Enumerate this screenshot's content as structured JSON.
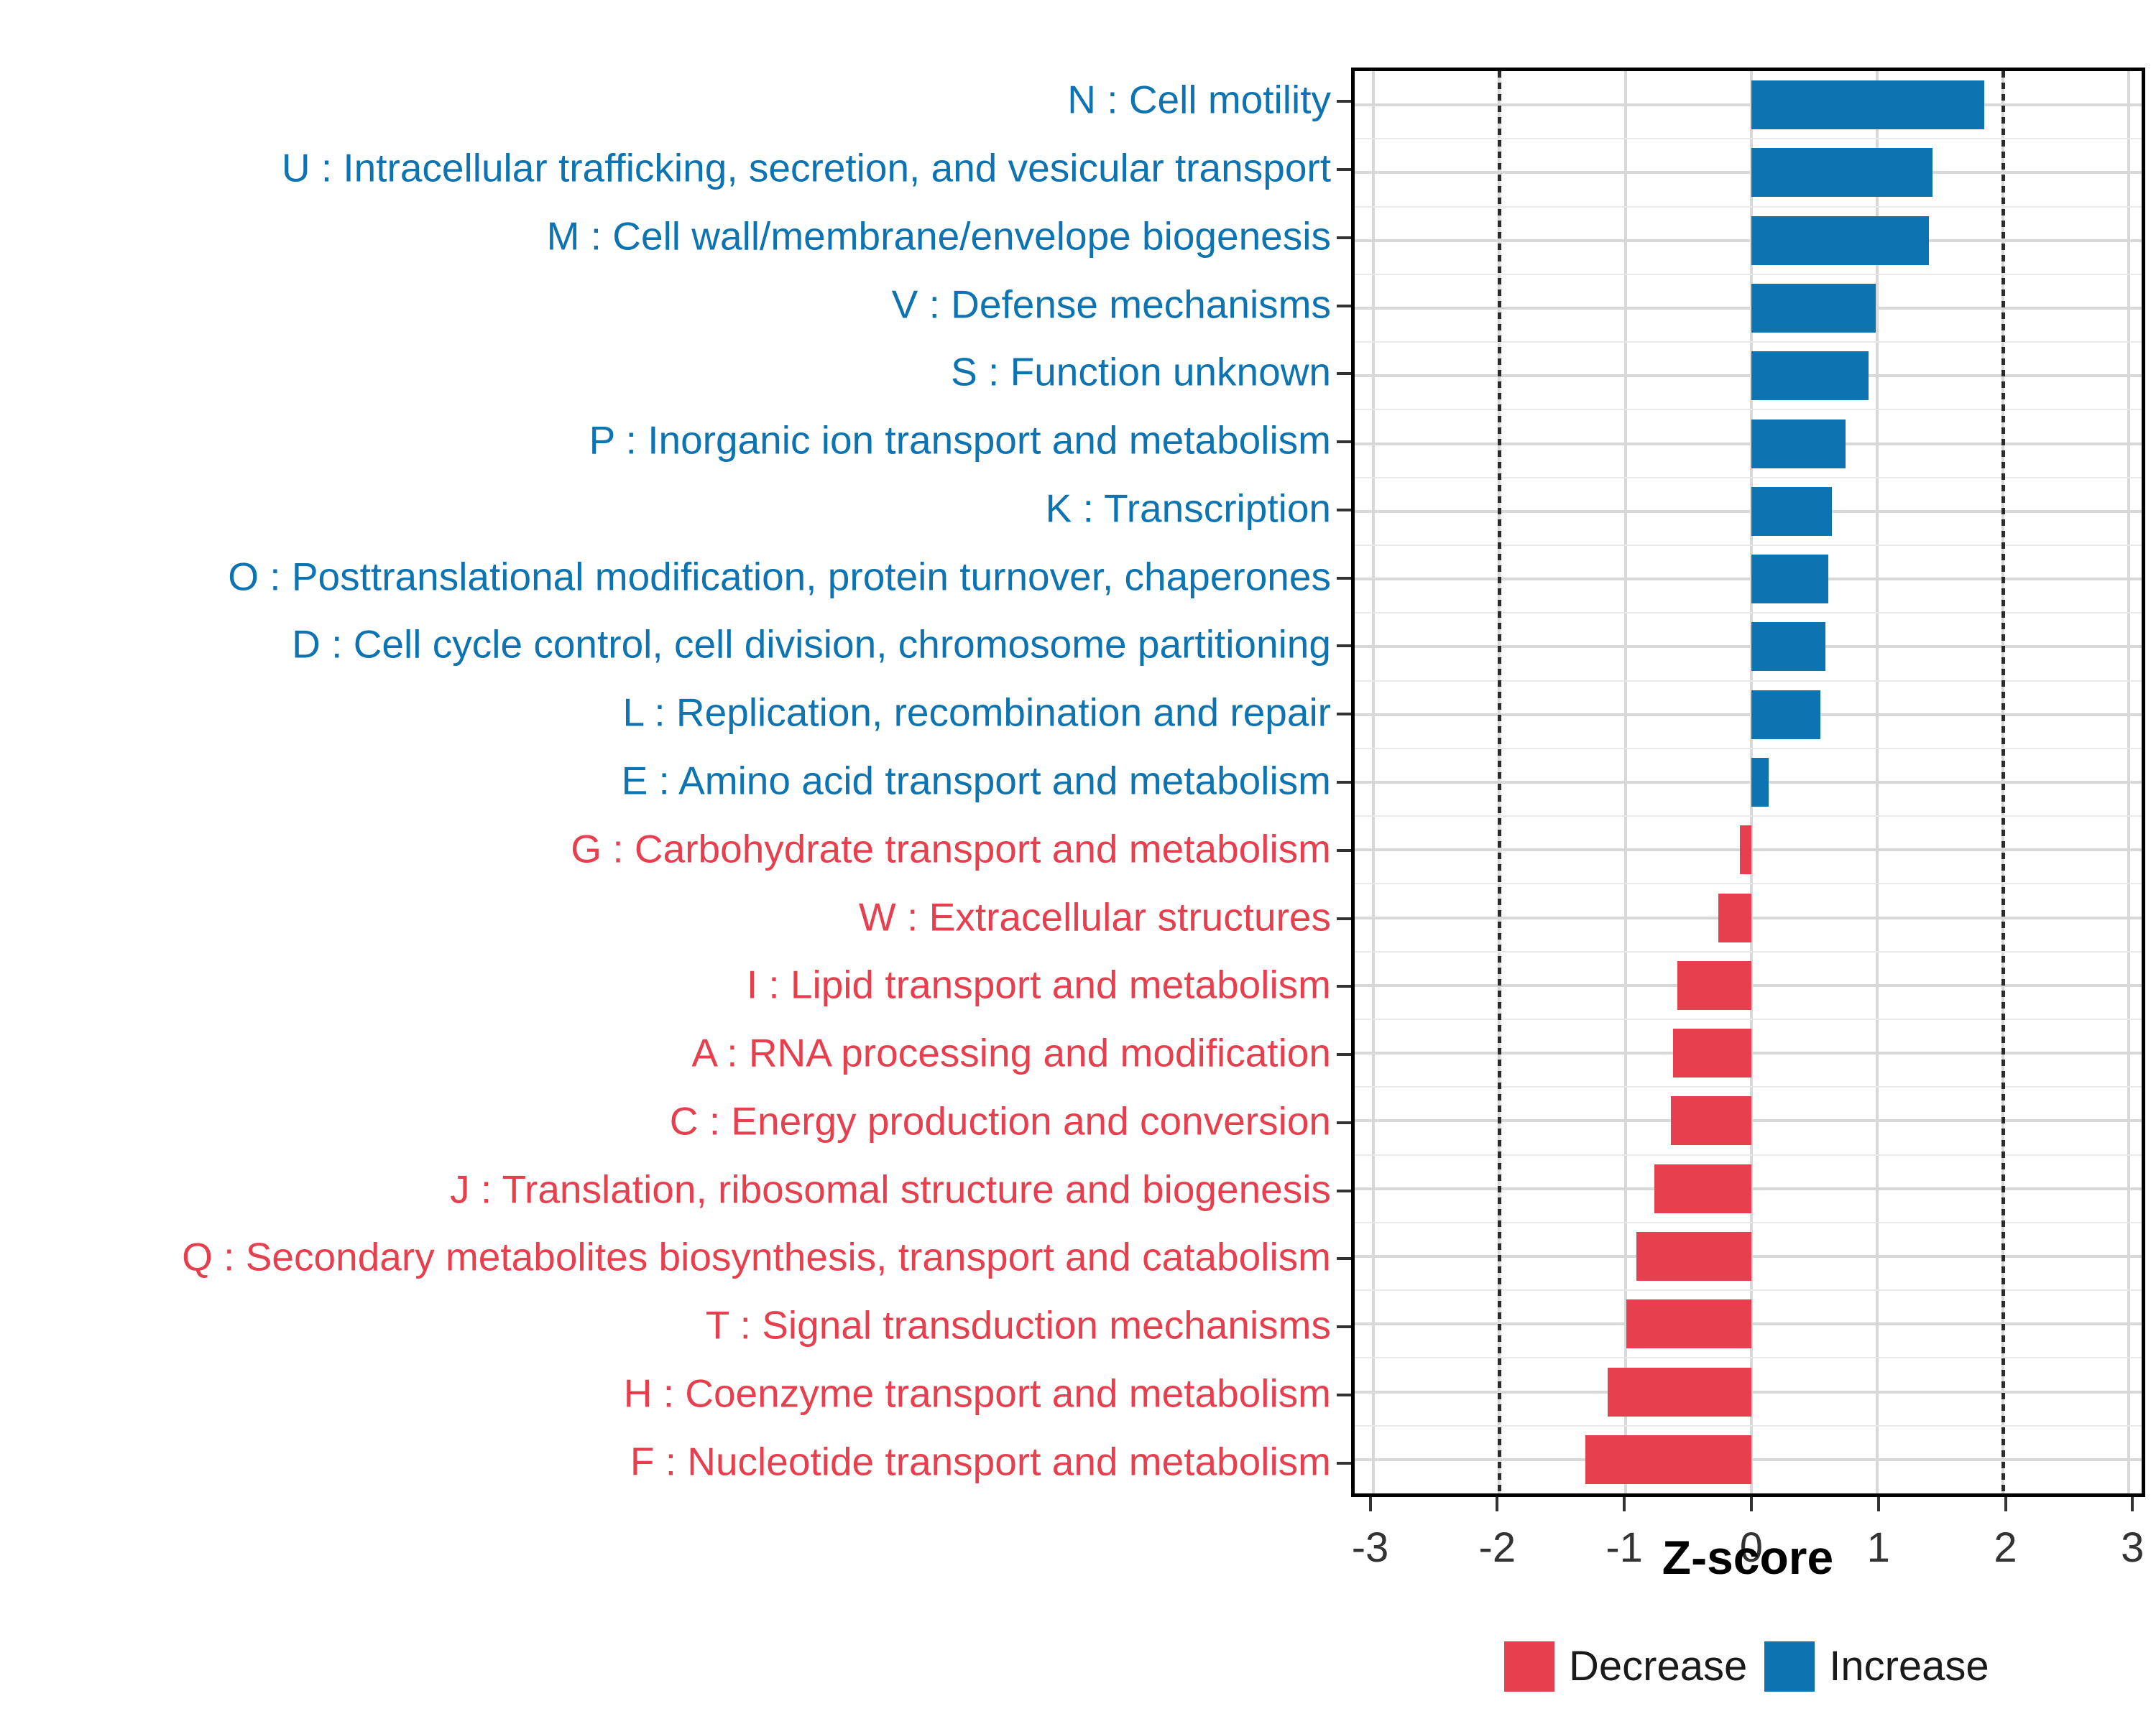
{
  "chart_data": {
    "type": "bar",
    "orientation": "horizontal",
    "title": "",
    "xlabel": "Z-score",
    "ylabel": "",
    "xlim": [
      -3.15,
      3.1
    ],
    "x_ticks": [
      -3,
      -2,
      -1,
      0,
      1,
      2,
      3
    ],
    "reference_lines": [
      -2,
      2
    ],
    "grid": true,
    "legend_position": "bottom-right",
    "colors": {
      "increase": "#0d73b1",
      "decrease": "#e6404e"
    },
    "categories": [
      "N : Cell motility",
      "U : Intracellular trafficking, secretion, and vesicular transport",
      "M : Cell wall/membrane/envelope biogenesis",
      "V : Defense mechanisms",
      "S : Function unknown",
      "P : Inorganic ion transport and metabolism",
      "K : Transcription",
      "O : Posttranslational modification, protein turnover, chaperones",
      "D : Cell cycle control, cell division, chromosome partitioning",
      "L : Replication, recombination and repair",
      "E : Amino acid transport and metabolism",
      "G : Carbohydrate transport and metabolism",
      "W : Extracellular structures",
      "I : Lipid transport and metabolism",
      "A : RNA processing and modification",
      "C : Energy production and conversion",
      "J : Translation, ribosomal structure and biogenesis",
      "Q : Secondary metabolites biosynthesis, transport and catabolism",
      "T : Signal transduction mechanisms",
      "H : Coenzyme transport and metabolism",
      "F : Nucleotide transport and metabolism"
    ],
    "values": [
      1.85,
      1.44,
      1.41,
      0.99,
      0.93,
      0.75,
      0.64,
      0.61,
      0.59,
      0.55,
      0.14,
      -0.09,
      -0.26,
      -0.59,
      -0.62,
      -0.64,
      -0.77,
      -0.91,
      -0.99,
      -1.14,
      -1.32
    ],
    "directions": [
      "Increase",
      "Increase",
      "Increase",
      "Increase",
      "Increase",
      "Increase",
      "Increase",
      "Increase",
      "Increase",
      "Increase",
      "Increase",
      "Decrease",
      "Decrease",
      "Decrease",
      "Decrease",
      "Decrease",
      "Decrease",
      "Decrease",
      "Decrease",
      "Decrease",
      "Decrease"
    ]
  },
  "axis": {
    "xlabel": "Z-score",
    "x_tick_labels": [
      "-3",
      "-2",
      "-1",
      "0",
      "1",
      "2",
      "3"
    ]
  },
  "legend": {
    "items": [
      {
        "label": "Decrease",
        "color": "#e6404e"
      },
      {
        "label": "Increase",
        "color": "#0d73b1"
      }
    ]
  }
}
